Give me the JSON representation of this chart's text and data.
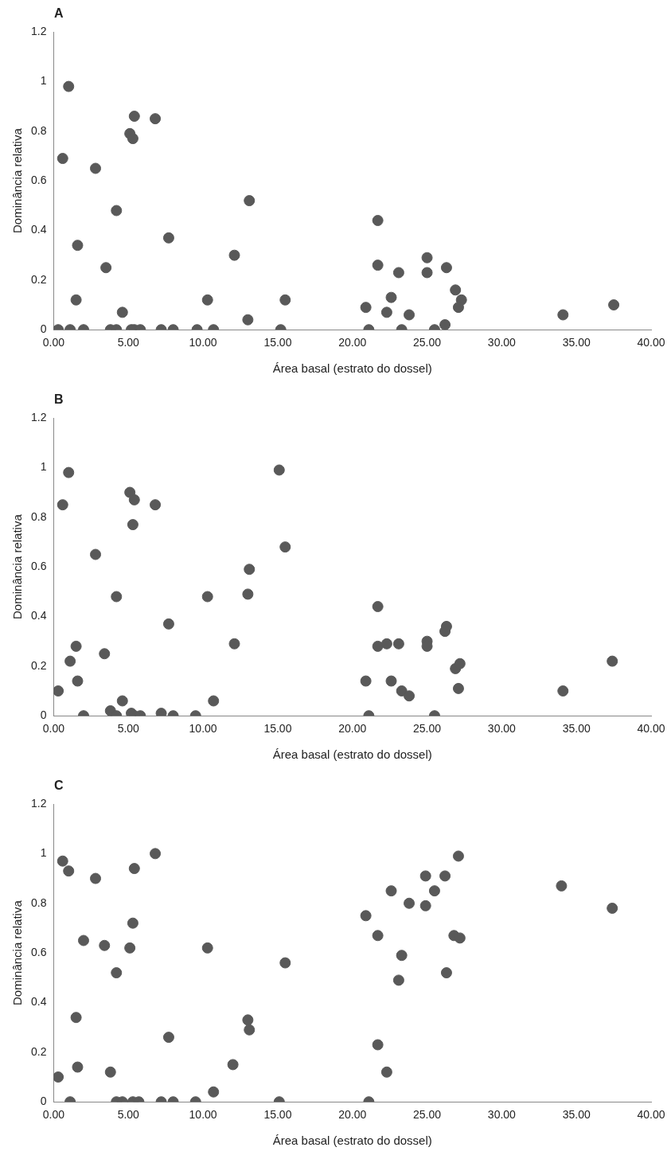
{
  "chart_data": [
    {
      "type": "scatter",
      "title": "A",
      "xlabel": "Área basal (estrato do dossel)",
      "ylabel": "Dominância relativa",
      "marker": "circle",
      "grid": false,
      "legend": false,
      "xlim": [
        0,
        40
      ],
      "xticks": [
        {
          "value": 0,
          "label": "0.00"
        },
        {
          "value": 5,
          "label": "5.00"
        },
        {
          "value": 10,
          "label": "10.00"
        },
        {
          "value": 15,
          "label": "15.00"
        },
        {
          "value": 20,
          "label": "20.00"
        },
        {
          "value": 25,
          "label": "25.00"
        },
        {
          "value": 30,
          "label": "30.00"
        },
        {
          "value": 35,
          "label": "35.00"
        },
        {
          "value": 40,
          "label": "40.00"
        }
      ],
      "ylim": [
        0,
        1.2
      ],
      "yticks": [
        0,
        0.2,
        0.4,
        0.6,
        0.8,
        1,
        1.2
      ],
      "series": [
        {
          "color": "#595959",
          "x": [
            0.3,
            1.0,
            1.1,
            0.6,
            1.6,
            1.5,
            2.0,
            2.8,
            3.5,
            3.8,
            4.2,
            4.2,
            4.6,
            5.1,
            5.4,
            5.3,
            5.2,
            5.4,
            5.8,
            6.8,
            7.2,
            7.7,
            8.0,
            9.6,
            10.3,
            10.7,
            12.1,
            13.1,
            13.0,
            15.2,
            15.5,
            20.9,
            21.1,
            21.7,
            21.7,
            22.3,
            22.6,
            23.1,
            23.3,
            23.8,
            25.0,
            25.0,
            25.5,
            26.2,
            26.3,
            26.9,
            27.3,
            27.1,
            34.1,
            37.5
          ],
          "values": [
            0,
            0.98,
            0,
            0.69,
            0.34,
            0.12,
            0,
            0.65,
            0.25,
            0,
            0,
            0.48,
            0.07,
            0.79,
            0.86,
            0.77,
            0,
            0,
            0,
            0.85,
            0,
            0.37,
            0,
            0,
            0.12,
            0,
            0.3,
            0.52,
            0.04,
            0,
            0.12,
            0.09,
            0,
            0.44,
            0.26,
            0.07,
            0.13,
            0.23,
            0,
            0.06,
            0.29,
            0.23,
            0,
            0.02,
            0.25,
            0.16,
            0.12,
            0.09,
            0.06,
            0.1
          ]
        }
      ]
    },
    {
      "type": "scatter",
      "title": "B",
      "xlabel": "Área basal (estrato do dossel)",
      "ylabel": "Dominância relativa",
      "marker": "circle",
      "grid": false,
      "legend": false,
      "xlim": [
        0,
        40
      ],
      "xticks": [
        {
          "value": 0,
          "label": "0.00"
        },
        {
          "value": 5,
          "label": "5.00"
        },
        {
          "value": 10,
          "label": "10.00"
        },
        {
          "value": 15,
          "label": "15.00"
        },
        {
          "value": 20,
          "label": "20.00"
        },
        {
          "value": 25,
          "label": "25.00"
        },
        {
          "value": 30,
          "label": "30.00"
        },
        {
          "value": 35,
          "label": "35.00"
        },
        {
          "value": 40,
          "label": "40.00"
        }
      ],
      "ylim": [
        0,
        1.2
      ],
      "yticks": [
        0,
        0.2,
        0.4,
        0.6,
        0.8,
        1,
        1.2
      ],
      "series": [
        {
          "color": "#595959",
          "x": [
            0.3,
            0.6,
            1.0,
            1.1,
            1.5,
            1.6,
            2.0,
            2.8,
            3.4,
            3.8,
            4.2,
            4.2,
            4.6,
            5.1,
            5.4,
            5.3,
            5.2,
            5.4,
            5.8,
            6.8,
            7.2,
            7.7,
            8.0,
            9.5,
            10.3,
            10.7,
            12.1,
            13.0,
            13.1,
            15.1,
            15.5,
            20.9,
            21.1,
            21.7,
            21.7,
            22.3,
            22.6,
            23.1,
            23.3,
            23.8,
            25.0,
            25.0,
            25.5,
            26.2,
            26.3,
            26.9,
            27.2,
            27.1,
            34.1,
            37.4
          ],
          "values": [
            0.1,
            0.85,
            0.98,
            0.22,
            0.28,
            0.14,
            0,
            0.65,
            0.25,
            0.02,
            0.48,
            0,
            0.06,
            0.9,
            0.87,
            0.77,
            0.01,
            0,
            0,
            0.85,
            0.01,
            0.37,
            0,
            0,
            0.48,
            0.06,
            0.29,
            0.49,
            0.59,
            0.99,
            0.68,
            0.14,
            0,
            0.44,
            0.28,
            0.29,
            0.14,
            0.29,
            0.1,
            0.08,
            0.3,
            0.28,
            0,
            0.34,
            0.36,
            0.19,
            0.21,
            0.11,
            0.1,
            0.22
          ]
        }
      ]
    },
    {
      "type": "scatter",
      "title": "C",
      "xlabel": "Área basal (estrato do dossel)",
      "ylabel": "Dominância relativa",
      "marker": "circle",
      "grid": false,
      "legend": false,
      "xlim": [
        0,
        40
      ],
      "xticks": [
        {
          "value": 0,
          "label": "0.00"
        },
        {
          "value": 5,
          "label": "5.00"
        },
        {
          "value": 10,
          "label": "10.00"
        },
        {
          "value": 15,
          "label": "15.00"
        },
        {
          "value": 20,
          "label": "20.00"
        },
        {
          "value": 25,
          "label": "25.00"
        },
        {
          "value": 30,
          "label": "30.00"
        },
        {
          "value": 35,
          "label": "35.00"
        },
        {
          "value": 40,
          "label": "40.00"
        }
      ],
      "ylim": [
        0,
        1.2
      ],
      "yticks": [
        0,
        0.2,
        0.4,
        0.6,
        0.8,
        1,
        1.2
      ],
      "series": [
        {
          "color": "#595959",
          "x": [
            0.3,
            0.6,
            1.0,
            1.1,
            1.5,
            1.6,
            2.0,
            2.8,
            3.4,
            3.8,
            4.2,
            4.2,
            4.6,
            5.1,
            5.4,
            5.3,
            5.3,
            5.7,
            6.8,
            7.2,
            7.7,
            8.0,
            9.5,
            10.3,
            10.7,
            12.0,
            13.0,
            13.1,
            15.1,
            15.5,
            20.9,
            21.1,
            21.7,
            21.7,
            22.3,
            22.6,
            23.1,
            23.3,
            23.8,
            24.9,
            24.9,
            25.5,
            26.2,
            26.3,
            26.8,
            27.2,
            27.1,
            34.0,
            37.4
          ],
          "values": [
            0.1,
            0.97,
            0.93,
            0,
            0.34,
            0.14,
            0.65,
            0.9,
            0.63,
            0.12,
            0.52,
            0,
            0,
            0.62,
            0.94,
            0.72,
            0,
            0,
            1.0,
            0,
            0.26,
            0,
            0,
            0.62,
            0.04,
            0.15,
            0.33,
            0.29,
            0,
            0.56,
            0.75,
            0,
            0.67,
            0.23,
            0.12,
            0.85,
            0.49,
            0.59,
            0.8,
            0.91,
            0.79,
            0.85,
            0.91,
            0.52,
            0.67,
            0.66,
            0.99,
            0.87,
            0.78
          ]
        }
      ]
    }
  ]
}
